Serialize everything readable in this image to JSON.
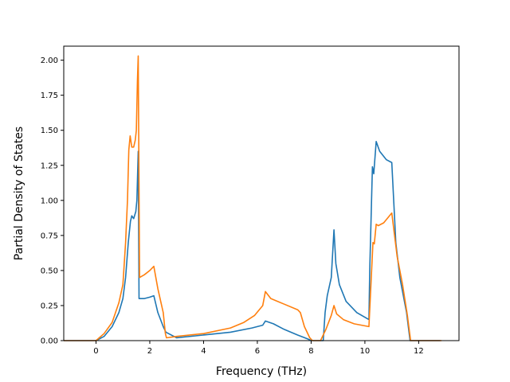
{
  "chart_data": {
    "type": "line",
    "xlabel": "Frequency (THz)",
    "ylabel": "Partial Density of States",
    "xlim": [
      -1.2,
      13.5
    ],
    "ylim": [
      0.0,
      2.1
    ],
    "xticks": [
      0,
      2,
      4,
      6,
      8,
      10,
      12
    ],
    "xtick_labels": [
      "0",
      "2",
      "4",
      "6",
      "8",
      "10",
      "12"
    ],
    "yticks": [
      0.0,
      0.25,
      0.5,
      0.75,
      1.0,
      1.25,
      1.5,
      1.75,
      2.0
    ],
    "ytick_labels": [
      "0.00",
      "0.25",
      "0.50",
      "0.75",
      "1.00",
      "1.25",
      "1.50",
      "1.75",
      "2.00"
    ],
    "grid": false,
    "series": [
      {
        "color": "#1f77b4",
        "points": [
          [
            -1.2,
            0.0
          ],
          [
            0.0,
            0.0
          ],
          [
            0.3,
            0.03
          ],
          [
            0.6,
            0.1
          ],
          [
            0.85,
            0.2
          ],
          [
            1.0,
            0.3
          ],
          [
            1.1,
            0.45
          ],
          [
            1.2,
            0.7
          ],
          [
            1.28,
            0.85
          ],
          [
            1.33,
            0.89
          ],
          [
            1.4,
            0.87
          ],
          [
            1.48,
            0.92
          ],
          [
            1.52,
            1.0
          ],
          [
            1.57,
            1.35
          ],
          [
            1.6,
            0.3
          ],
          [
            1.8,
            0.3
          ],
          [
            2.0,
            0.31
          ],
          [
            2.15,
            0.32
          ],
          [
            2.3,
            0.2
          ],
          [
            2.5,
            0.1
          ],
          [
            2.6,
            0.06
          ],
          [
            3.0,
            0.02
          ],
          [
            4.0,
            0.04
          ],
          [
            5.0,
            0.06
          ],
          [
            5.8,
            0.09
          ],
          [
            6.2,
            0.11
          ],
          [
            6.3,
            0.14
          ],
          [
            6.6,
            0.12
          ],
          [
            7.0,
            0.08
          ],
          [
            7.5,
            0.04
          ],
          [
            7.9,
            0.01
          ],
          [
            8.0,
            0.0
          ],
          [
            8.45,
            0.0
          ],
          [
            8.52,
            0.2
          ],
          [
            8.6,
            0.32
          ],
          [
            8.75,
            0.45
          ],
          [
            8.85,
            0.79
          ],
          [
            8.92,
            0.55
          ],
          [
            9.05,
            0.4
          ],
          [
            9.3,
            0.28
          ],
          [
            9.7,
            0.2
          ],
          [
            10.15,
            0.15
          ],
          [
            10.18,
            0.5
          ],
          [
            10.28,
            1.24
          ],
          [
            10.33,
            1.19
          ],
          [
            10.42,
            1.42
          ],
          [
            10.55,
            1.35
          ],
          [
            10.8,
            1.29
          ],
          [
            11.0,
            1.27
          ],
          [
            11.15,
            0.7
          ],
          [
            11.3,
            0.45
          ],
          [
            11.55,
            0.2
          ],
          [
            11.68,
            0.0
          ],
          [
            12.8,
            0.0
          ]
        ]
      },
      {
        "color": "#ff7f0e",
        "points": [
          [
            -1.2,
            0.0
          ],
          [
            0.0,
            0.0
          ],
          [
            0.3,
            0.05
          ],
          [
            0.6,
            0.13
          ],
          [
            0.85,
            0.27
          ],
          [
            1.0,
            0.4
          ],
          [
            1.1,
            0.7
          ],
          [
            1.17,
            1.0
          ],
          [
            1.22,
            1.36
          ],
          [
            1.27,
            1.46
          ],
          [
            1.33,
            1.38
          ],
          [
            1.4,
            1.38
          ],
          [
            1.46,
            1.43
          ],
          [
            1.5,
            1.5
          ],
          [
            1.54,
            1.85
          ],
          [
            1.57,
            2.03
          ],
          [
            1.62,
            0.45
          ],
          [
            1.8,
            0.47
          ],
          [
            2.0,
            0.5
          ],
          [
            2.15,
            0.53
          ],
          [
            2.3,
            0.37
          ],
          [
            2.5,
            0.2
          ],
          [
            2.58,
            0.05
          ],
          [
            2.62,
            0.02
          ],
          [
            3.0,
            0.03
          ],
          [
            4.0,
            0.05
          ],
          [
            5.0,
            0.09
          ],
          [
            5.5,
            0.13
          ],
          [
            5.9,
            0.18
          ],
          [
            6.2,
            0.25
          ],
          [
            6.3,
            0.35
          ],
          [
            6.5,
            0.3
          ],
          [
            7.0,
            0.26
          ],
          [
            7.5,
            0.22
          ],
          [
            7.6,
            0.2
          ],
          [
            7.75,
            0.1
          ],
          [
            7.95,
            0.02
          ],
          [
            8.05,
            0.0
          ],
          [
            8.35,
            0.0
          ],
          [
            8.55,
            0.08
          ],
          [
            8.75,
            0.18
          ],
          [
            8.85,
            0.25
          ],
          [
            8.95,
            0.19
          ],
          [
            9.2,
            0.15
          ],
          [
            9.6,
            0.12
          ],
          [
            10.15,
            0.1
          ],
          [
            10.3,
            0.7
          ],
          [
            10.35,
            0.69
          ],
          [
            10.42,
            0.83
          ],
          [
            10.5,
            0.82
          ],
          [
            10.7,
            0.84
          ],
          [
            11.0,
            0.91
          ],
          [
            11.2,
            0.6
          ],
          [
            11.4,
            0.4
          ],
          [
            11.58,
            0.18
          ],
          [
            11.7,
            0.0
          ],
          [
            12.85,
            0.0
          ]
        ]
      }
    ]
  }
}
